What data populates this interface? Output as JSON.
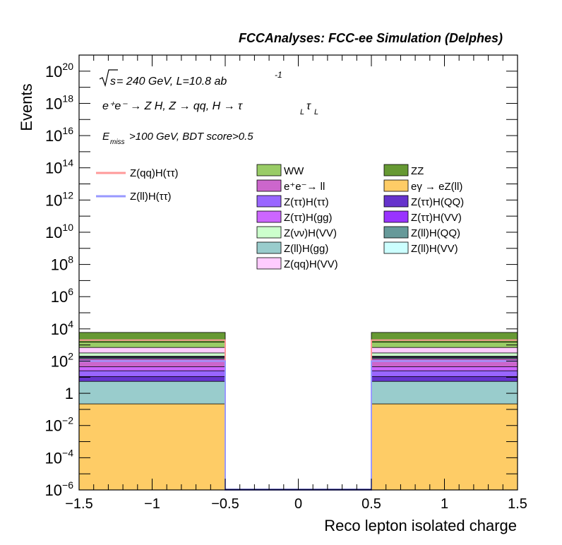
{
  "header": {
    "title": "FCCAnalyses: FCC-ee Simulation (Delphes)"
  },
  "annotations": {
    "energy_prefix": "s",
    "energy_text": " = 240 GeV, L=10.8 ab",
    "energy_sup": "-1",
    "process_line": "e⁺e⁻ → Z H, Z → qq, H → τ",
    "process_sub1": "L",
    "process_tau2": "τ",
    "process_sub2": "L",
    "cut_e": "E",
    "cut_sub": "miss",
    "cut_text": ">100 GeV, BDT score>0.5"
  },
  "chart_data": {
    "type": "bar",
    "xlabel": "Reco lepton isolated charge",
    "ylabel": "Events",
    "xlim": [
      -1.5,
      1.5
    ],
    "ylim_log10": [
      -6,
      21
    ],
    "log_y": true,
    "x_ticks": [
      "−1.5",
      "−1",
      "−0.5",
      "0",
      "0.5",
      "1",
      "1.5"
    ],
    "x_tick_values": [
      -1.5,
      -1,
      -0.5,
      0,
      0.5,
      1,
      1.5
    ],
    "y_ticks": [
      {
        "exp": -6,
        "base": "10",
        "sup": "−6"
      },
      {
        "exp": -4,
        "base": "10",
        "sup": "−4"
      },
      {
        "exp": -2,
        "base": "10",
        "sup": "−2"
      },
      {
        "exp": 0,
        "base": "1",
        "sup": ""
      },
      {
        "exp": 2,
        "base": "10",
        "sup": "2"
      },
      {
        "exp": 4,
        "base": "10",
        "sup": "4"
      },
      {
        "exp": 6,
        "base": "10",
        "sup": "6"
      },
      {
        "exp": 8,
        "base": "10",
        "sup": "8"
      },
      {
        "exp": 10,
        "base": "10",
        "sup": "10"
      },
      {
        "exp": 12,
        "base": "10",
        "sup": "12"
      },
      {
        "exp": 14,
        "base": "10",
        "sup": "14"
      },
      {
        "exp": 16,
        "base": "10",
        "sup": "16"
      },
      {
        "exp": 18,
        "base": "10",
        "sup": "18"
      },
      {
        "exp": 20,
        "base": "10",
        "sup": "20"
      }
    ],
    "bins": [
      {
        "x0": -1.5,
        "x1": -0.5
      },
      {
        "x0": -0.5,
        "x1": 0.5
      },
      {
        "x0": 0.5,
        "x1": 1.5
      }
    ],
    "stack_cumulative": [
      {
        "name": "eγ → eZ(ll)",
        "color": "#fecc66",
        "values": [
          0.22,
          0.0,
          0.22
        ]
      },
      {
        "name": "Z(ll)H(gg)",
        "color": "#99cccc",
        "values": [
          5.5,
          0.0,
          5.5
        ]
      },
      {
        "name": "Z(ττ)H(QQ)",
        "color": "#6633cc",
        "values": [
          11,
          0.0,
          11
        ]
      },
      {
        "name": "Z(ττ)H(ττ)",
        "color": "#9966ff",
        "values": [
          25,
          0.0,
          25
        ]
      },
      {
        "name": "Z(ττ)H(gg)",
        "color": "#cc66ff",
        "values": [
          45,
          0.0,
          45
        ]
      },
      {
        "name": "e⁺e⁻→ ll",
        "color": "#cc66cc",
        "values": [
          140,
          0.0,
          140
        ]
      },
      {
        "name": "Z(ll)H(QQ)",
        "color": "#669999",
        "values": [
          165,
          0.0,
          165
        ]
      },
      {
        "name": "Z(ll)H(VV)",
        "color": "#ccffff",
        "values": [
          180,
          0.0,
          180
        ]
      },
      {
        "name": "Z(ττ)H(VV)",
        "color": "#9933ff",
        "values": [
          200,
          0.0,
          200
        ]
      },
      {
        "name": "Z(νν)H(VV)",
        "color": "#ccffcc",
        "values": [
          320,
          0.0,
          320
        ]
      },
      {
        "name": "Z(qq)H(VV)",
        "color": "#ffccff",
        "values": [
          700,
          0.0,
          700
        ]
      },
      {
        "name": "WW",
        "color": "#99cc66",
        "values": [
          1500,
          0.0,
          1500
        ]
      },
      {
        "name": "ZZ",
        "color": "#669933",
        "values": [
          6000,
          0.0,
          6000
        ]
      }
    ],
    "signal_lines": [
      {
        "name": "Z(qq)H(ττ)",
        "color": "#ff9999",
        "values": [
          2000,
          1e-06,
          2000
        ]
      },
      {
        "name": "Z(ll)H(ττ)",
        "color": "#9999ff",
        "values": [
          100,
          1e-06,
          100
        ]
      }
    ],
    "legend_lines": [
      "Z(qq)H(ττ)",
      "Z(ll)H(ττ)"
    ],
    "legend_col1": [
      {
        "label": "WW",
        "color": "#99cc66"
      },
      {
        "label": "e⁺e⁻→ ll",
        "color": "#cc66cc"
      },
      {
        "label": "Z(ττ)H(ττ)",
        "color": "#9966ff"
      },
      {
        "label": "Z(ττ)H(gg)",
        "color": "#cc66ff"
      },
      {
        "label": "Z(νν)H(VV)",
        "color": "#ccffcc"
      },
      {
        "label": "Z(ll)H(gg)",
        "color": "#99cccc"
      },
      {
        "label": "Z(qq)H(VV)",
        "color": "#ffccff"
      }
    ],
    "legend_col2": [
      {
        "label": "ZZ",
        "color": "#669933"
      },
      {
        "label": "eγ → eZ(ll)",
        "color": "#fecc66"
      },
      {
        "label": "Z(ττ)H(QQ)",
        "color": "#6633cc"
      },
      {
        "label": "Z(ττ)H(VV)",
        "color": "#9933ff"
      },
      {
        "label": "Z(ll)H(QQ)",
        "color": "#669999"
      },
      {
        "label": "Z(ll)H(VV)",
        "color": "#ccffff"
      }
    ]
  }
}
